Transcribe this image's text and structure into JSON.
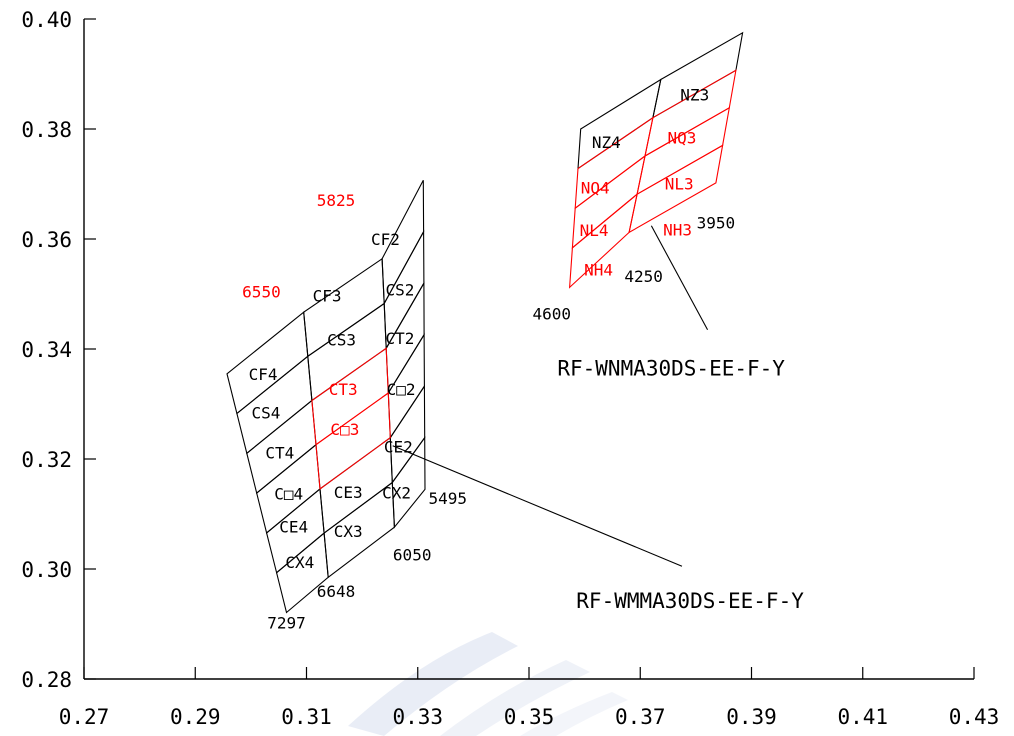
{
  "chart_data": {
    "type": "diagram",
    "xlim": [
      0.27,
      0.43
    ],
    "ylim": [
      0.28,
      0.4
    ],
    "x_ticks": [
      "0.27",
      "0.29",
      "0.31",
      "0.33",
      "0.35",
      "0.37",
      "0.39",
      "0.41",
      "0.43"
    ],
    "y_ticks": [
      "0.28",
      "0.30",
      "0.32",
      "0.34",
      "0.36",
      "0.38",
      "0.40"
    ],
    "colors": {
      "black": "#000000",
      "red": "#ff0000",
      "watermark": "#e0e6f2"
    },
    "groups": [
      {
        "name": "RF-WMMA30DS-EE-F-Y",
        "label": "RF-WMMA30DS-EE-F-Y",
        "label_anchor": [
          0.3585,
          0.2944
        ],
        "leader": {
          "from": [
            0.3775,
            0.3005
          ],
          "to": [
            0.3255,
            0.3224
          ]
        },
        "columns": [
          {
            "bottom": [
              0.3064,
              0.2921
            ],
            "top": [
              0.2957,
              0.3355
            ],
            "label": "7297"
          },
          {
            "bottom": [
              0.3139,
              0.2985
            ],
            "top": [
              0.3095,
              0.3467
            ],
            "label": "6648"
          },
          {
            "bottom": [
              0.3258,
              0.3076
            ],
            "top": [
              0.3236,
              0.3564
            ],
            "label": "6050"
          },
          {
            "bottom": [
              0.3313,
              0.3145
            ],
            "top": [
              0.331,
              0.3707
            ],
            "label": "5495"
          }
        ],
        "column_annotations": [
          {
            "text": "6550",
            "color": "red",
            "at": [
              0.3019,
              0.3505
            ]
          },
          {
            "text": "5825",
            "color": "red",
            "at": [
              0.3153,
              0.3671
            ]
          }
        ],
        "bands": [
          {
            "cells": [
              "CX4",
              "CX3",
              "CX2"
            ]
          },
          {
            "cells": [
              "CE4",
              "CE3",
              "CE2"
            ]
          },
          {
            "cells": [
              "C□4",
              "C□3",
              "C□2"
            ]
          },
          {
            "cells": [
              "CT4",
              "CT3",
              "CT2"
            ]
          },
          {
            "cells": [
              "CS4",
              "CS3",
              "CS2"
            ]
          },
          {
            "cells": [
              "CF4",
              "CF3",
              "CF2"
            ]
          }
        ],
        "red_cells": [
          "C□3",
          "CT3"
        ],
        "cell_positions": {
          "CX4": [
            0.3088,
            0.3013
          ],
          "CX3": [
            0.3175,
            0.3069
          ],
          "CX2": [
            0.3262,
            0.3139
          ],
          "CE4": [
            0.3077,
            0.3077
          ],
          "CE3": [
            0.3175,
            0.314
          ],
          "CE2": [
            0.3265,
            0.3223
          ],
          "C□4": [
            0.3068,
            0.3137
          ],
          "C□3": [
            0.3169,
            0.3255
          ],
          "C□2": [
            0.327,
            0.3327
          ],
          "CT4": [
            0.3052,
            0.3212
          ],
          "CT3": [
            0.3166,
            0.3327
          ],
          "CT2": [
            0.3268,
            0.342
          ],
          "CS4": [
            0.3027,
            0.3285
          ],
          "CS3": [
            0.3163,
            0.3417
          ],
          "CS2": [
            0.3268,
            0.3508
          ],
          "CF4": [
            0.3022,
            0.3355
          ],
          "CF3": [
            0.3137,
            0.3497
          ],
          "CF2": [
            0.3242,
            0.36
          ]
        }
      },
      {
        "name": "RF-WNMA30DS-EE-F-Y",
        "label": "RF-WNMA30DS-EE-F-Y",
        "label_anchor": [
          0.3551,
          0.3366
        ],
        "leader": {
          "from": [
            0.3821,
            0.3435
          ],
          "to": [
            0.372,
            0.3624
          ]
        },
        "columns": [
          {
            "bottom": [
              0.3573,
              0.3512
            ],
            "top": [
              0.3593,
              0.38
            ],
            "label": "4600"
          },
          {
            "bottom": [
              0.368,
              0.3612
            ],
            "top": [
              0.3737,
              0.389
            ],
            "label": "4250"
          },
          {
            "bottom": [
              0.3836,
              0.3702
            ],
            "top": [
              0.3884,
              0.3975
            ],
            "label": "3950"
          }
        ],
        "column_annotations": [],
        "bands": [
          {
            "cells": [
              "NH4",
              "NH3"
            ]
          },
          {
            "cells": [
              "NL4",
              "NL3"
            ]
          },
          {
            "cells": [
              "NQ4",
              "NQ3"
            ]
          },
          {
            "cells": [
              "NZ4",
              "NZ3"
            ]
          }
        ],
        "red_cells": [
          "NH4",
          "NH3",
          "NL4",
          "NL3",
          "NQ4",
          "NQ3"
        ],
        "cell_positions": {
          "NH4": [
            0.3625,
            0.3545
          ],
          "NH3": [
            0.3767,
            0.3617
          ],
          "NL4": [
            0.3617,
            0.3616
          ],
          "NL3": [
            0.377,
            0.3701
          ],
          "NQ4": [
            0.3619,
            0.3694
          ],
          "NQ3": [
            0.3775,
            0.3785
          ],
          "NZ4": [
            0.3639,
            0.3776
          ],
          "NZ3": [
            0.3798,
            0.3863
          ]
        }
      }
    ],
    "column_label_positions": {
      "7297": [
        0.3064,
        0.2903
      ],
      "6648": [
        0.3153,
        0.296
      ],
      "6050": [
        0.329,
        0.3026
      ],
      "5495": [
        0.3354,
        0.3129
      ],
      "4600": [
        0.3541,
        0.3465
      ],
      "4250": [
        0.3706,
        0.3533
      ],
      "3950": [
        0.3836,
        0.363
      ]
    }
  }
}
